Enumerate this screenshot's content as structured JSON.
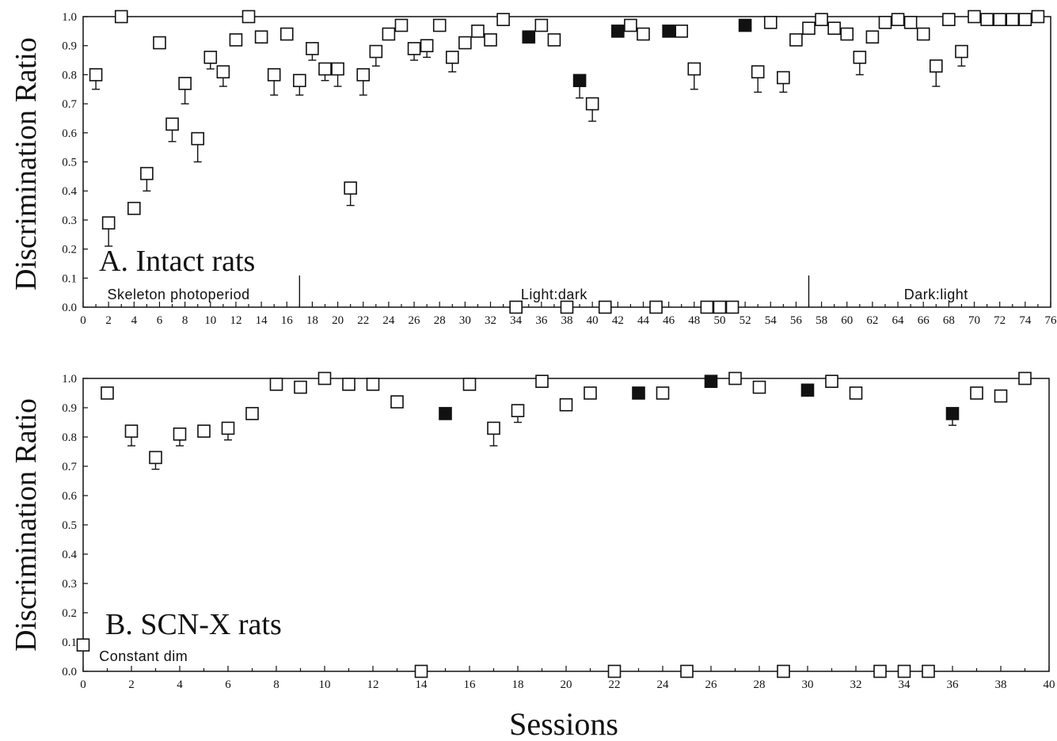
{
  "chart_data": [
    {
      "type": "scatter",
      "panel_title": "A. Intact rats",
      "ylabel": "Discrimination Ratio",
      "xlabel": "",
      "xlim": [
        0,
        76
      ],
      "ylim": [
        0,
        1.0
      ],
      "x_ticks": [
        "0",
        "2",
        "4",
        "6",
        "8",
        "10",
        "12",
        "14",
        "16",
        "18",
        "20",
        "22",
        "24",
        "26",
        "28",
        "30",
        "32",
        "34",
        "36",
        "38",
        "40",
        "42",
        "44",
        "46",
        "48",
        "50",
        "52",
        "54",
        "56",
        "58",
        "60",
        "62",
        "64",
        "66",
        "68",
        "70",
        "72",
        "74",
        "76"
      ],
      "y_ticks": [
        "0.0",
        "0.1",
        "0.2",
        "0.3",
        "0.4",
        "0.5",
        "0.6",
        "0.7",
        "0.8",
        "0.9",
        "1.0"
      ],
      "annotations": [
        {
          "text": "Skeleton photoperiod",
          "x": 7.5
        },
        {
          "text": "Light:dark",
          "x": 37
        },
        {
          "text": "Dark:light",
          "x": 67
        }
      ],
      "dividers": [
        17,
        57
      ],
      "series": [
        {
          "fill": "open",
          "points": [
            {
              "x": 1,
              "y": 0.8,
              "err": 0.05
            },
            {
              "x": 2,
              "y": 0.29,
              "err": 0.08
            },
            {
              "x": 3,
              "y": 1.0
            },
            {
              "x": 4,
              "y": 0.34
            },
            {
              "x": 5,
              "y": 0.46,
              "err": 0.06
            },
            {
              "x": 6,
              "y": 0.91
            },
            {
              "x": 7,
              "y": 0.63,
              "err": 0.06
            },
            {
              "x": 8,
              "y": 0.77,
              "err": 0.07
            },
            {
              "x": 9,
              "y": 0.58,
              "err": 0.08
            },
            {
              "x": 10,
              "y": 0.86,
              "err": 0.04
            },
            {
              "x": 11,
              "y": 0.81,
              "err": 0.05
            },
            {
              "x": 12,
              "y": 0.92
            },
            {
              "x": 13,
              "y": 1.0
            },
            {
              "x": 14,
              "y": 0.93
            },
            {
              "x": 15,
              "y": 0.8,
              "err": 0.07
            },
            {
              "x": 16,
              "y": 0.94
            },
            {
              "x": 17,
              "y": 0.78,
              "err": 0.05
            },
            {
              "x": 18,
              "y": 0.89,
              "err": 0.04
            },
            {
              "x": 19,
              "y": 0.82,
              "err": 0.04
            },
            {
              "x": 20,
              "y": 0.82,
              "err": 0.06
            },
            {
              "x": 21,
              "y": 0.41,
              "err": 0.06
            },
            {
              "x": 22,
              "y": 0.8,
              "err": 0.07
            },
            {
              "x": 23,
              "y": 0.88,
              "err": 0.05
            },
            {
              "x": 24,
              "y": 0.94
            },
            {
              "x": 25,
              "y": 0.97
            },
            {
              "x": 26,
              "y": 0.89,
              "err": 0.04
            },
            {
              "x": 27,
              "y": 0.9,
              "err": 0.04
            },
            {
              "x": 28,
              "y": 0.97
            },
            {
              "x": 29,
              "y": 0.86,
              "err": 0.05
            },
            {
              "x": 30,
              "y": 0.91
            },
            {
              "x": 31,
              "y": 0.95
            },
            {
              "x": 32,
              "y": 0.92
            },
            {
              "x": 33,
              "y": 0.99
            },
            {
              "x": 34,
              "y": 0.0
            },
            {
              "x": 36,
              "y": 0.97
            },
            {
              "x": 37,
              "y": 0.92
            },
            {
              "x": 38,
              "y": 0.0
            },
            {
              "x": 40,
              "y": 0.7,
              "err": 0.06
            },
            {
              "x": 41,
              "y": 0.0
            },
            {
              "x": 43,
              "y": 0.97
            },
            {
              "x": 44,
              "y": 0.94
            },
            {
              "x": 45,
              "y": 0.0
            },
            {
              "x": 47,
              "y": 0.95
            },
            {
              "x": 48,
              "y": 0.82,
              "err": 0.07
            },
            {
              "x": 49,
              "y": 0.0
            },
            {
              "x": 50,
              "y": 0.0
            },
            {
              "x": 51,
              "y": 0.0
            },
            {
              "x": 53,
              "y": 0.81,
              "err": 0.07
            },
            {
              "x": 54,
              "y": 0.98
            },
            {
              "x": 55,
              "y": 0.79,
              "err": 0.05
            },
            {
              "x": 56,
              "y": 0.92
            },
            {
              "x": 57,
              "y": 0.96
            },
            {
              "x": 58,
              "y": 0.99
            },
            {
              "x": 59,
              "y": 0.96
            },
            {
              "x": 60,
              "y": 0.94
            },
            {
              "x": 61,
              "y": 0.86,
              "err": 0.06
            },
            {
              "x": 62,
              "y": 0.93
            },
            {
              "x": 63,
              "y": 0.98
            },
            {
              "x": 64,
              "y": 0.99
            },
            {
              "x": 65,
              "y": 0.98
            },
            {
              "x": 66,
              "y": 0.94
            },
            {
              "x": 67,
              "y": 0.83,
              "err": 0.07
            },
            {
              "x": 68,
              "y": 0.99
            },
            {
              "x": 69,
              "y": 0.88,
              "err": 0.05
            },
            {
              "x": 70,
              "y": 1.0
            },
            {
              "x": 71,
              "y": 0.99
            },
            {
              "x": 72,
              "y": 0.99
            },
            {
              "x": 73,
              "y": 0.99
            },
            {
              "x": 74,
              "y": 0.99
            },
            {
              "x": 75,
              "y": 1.0
            }
          ]
        },
        {
          "fill": "filled",
          "points": [
            {
              "x": 35,
              "y": 0.93
            },
            {
              "x": 39,
              "y": 0.78,
              "err": 0.06
            },
            {
              "x": 42,
              "y": 0.95
            },
            {
              "x": 46,
              "y": 0.95
            },
            {
              "x": 52,
              "y": 0.97
            }
          ]
        }
      ]
    },
    {
      "type": "scatter",
      "panel_title": "B. SCN-X rats",
      "ylabel": "Discrimination Ratio",
      "xlabel": "Sessions",
      "xlim": [
        0,
        40
      ],
      "ylim": [
        0,
        1.0
      ],
      "x_ticks": [
        "0",
        "2",
        "4",
        "6",
        "8",
        "10",
        "12",
        "14",
        "16",
        "18",
        "20",
        "22",
        "24",
        "26",
        "28",
        "30",
        "32",
        "34",
        "36",
        "38",
        "40"
      ],
      "y_ticks": [
        "0.0",
        "0.1",
        "0.2",
        "0.3",
        "0.4",
        "0.5",
        "0.6",
        "0.7",
        "0.8",
        "0.9",
        "1.0"
      ],
      "annotations": [
        {
          "text": "Constant dim",
          "x": 2.5
        }
      ],
      "dividers": [],
      "series": [
        {
          "fill": "open",
          "points": [
            {
              "x": 0,
              "y": 0.09
            },
            {
              "x": 1,
              "y": 0.95
            },
            {
              "x": 2,
              "y": 0.82,
              "err": 0.05
            },
            {
              "x": 3,
              "y": 0.73,
              "err": 0.04
            },
            {
              "x": 4,
              "y": 0.81,
              "err": 0.04
            },
            {
              "x": 5,
              "y": 0.82
            },
            {
              "x": 6,
              "y": 0.83,
              "err": 0.04
            },
            {
              "x": 7,
              "y": 0.88
            },
            {
              "x": 8,
              "y": 0.98
            },
            {
              "x": 9,
              "y": 0.97
            },
            {
              "x": 10,
              "y": 1.0
            },
            {
              "x": 11,
              "y": 0.98
            },
            {
              "x": 12,
              "y": 0.98
            },
            {
              "x": 13,
              "y": 0.92
            },
            {
              "x": 14,
              "y": 0.0
            },
            {
              "x": 16,
              "y": 0.98
            },
            {
              "x": 17,
              "y": 0.83,
              "err": 0.06
            },
            {
              "x": 18,
              "y": 0.89,
              "err": 0.04
            },
            {
              "x": 19,
              "y": 0.99
            },
            {
              "x": 20,
              "y": 0.91
            },
            {
              "x": 21,
              "y": 0.95
            },
            {
              "x": 22,
              "y": 0.0
            },
            {
              "x": 24,
              "y": 0.95
            },
            {
              "x": 25,
              "y": 0.0
            },
            {
              "x": 27,
              "y": 1.0
            },
            {
              "x": 28,
              "y": 0.97
            },
            {
              "x": 29,
              "y": 0.0
            },
            {
              "x": 31,
              "y": 0.99
            },
            {
              "x": 32,
              "y": 0.95
            },
            {
              "x": 33,
              "y": 0.0
            },
            {
              "x": 34,
              "y": 0.0
            },
            {
              "x": 35,
              "y": 0.0
            },
            {
              "x": 37,
              "y": 0.95
            },
            {
              "x": 38,
              "y": 0.94
            },
            {
              "x": 39,
              "y": 1.0
            }
          ]
        },
        {
          "fill": "filled",
          "points": [
            {
              "x": 15,
              "y": 0.88
            },
            {
              "x": 23,
              "y": 0.95
            },
            {
              "x": 26,
              "y": 0.99
            },
            {
              "x": 30,
              "y": 0.96
            },
            {
              "x": 36,
              "y": 0.88,
              "err": 0.04
            }
          ]
        }
      ]
    }
  ]
}
